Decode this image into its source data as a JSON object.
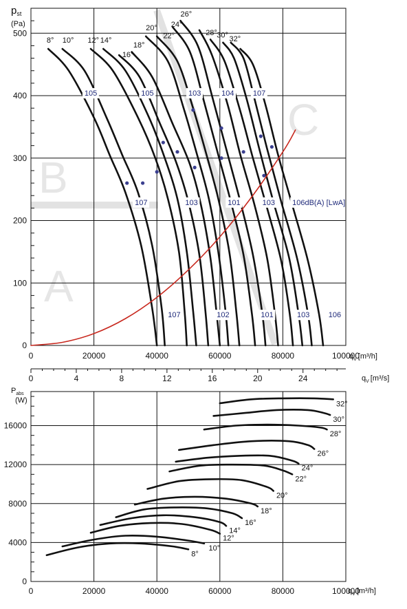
{
  "chart_data": [
    {
      "type": "line",
      "ylabel": "p",
      "ylabel_sub": "st",
      "yunit": "(Pa)",
      "xlabel": "q",
      "xlabel_sub": "V",
      "xunit": "[m³/h]",
      "x2unit": "[m³/s]",
      "xlim": [
        0,
        100000
      ],
      "ylim": [
        0,
        540
      ],
      "xticks": [
        "0",
        "20000",
        "40000",
        "60000",
        "80000",
        "100000"
      ],
      "x2ticks": [
        "0",
        "4",
        "8",
        "12",
        "16",
        "20",
        "24"
      ],
      "yticks": [
        "0",
        "100",
        "200",
        "300",
        "400",
        "500"
      ],
      "zones": [
        "A",
        "B",
        "C"
      ],
      "series": [
        {
          "name": "8°",
          "x": [
            5500,
            12000,
            20000,
            25000,
            30000,
            35000,
            38500,
            40000
          ],
          "y": [
            475,
            440,
            365,
            305,
            245,
            160,
            60,
            0
          ]
        },
        {
          "name": "10°",
          "x": [
            10000,
            17000,
            24000,
            29000,
            34000,
            38500,
            41500,
            42500
          ],
          "y": [
            475,
            440,
            365,
            305,
            245,
            160,
            60,
            0
          ]
        },
        {
          "name": "12°",
          "x": [
            19000,
            26000,
            34000,
            39500,
            43500,
            47000,
            48800,
            49500
          ],
          "y": [
            475,
            440,
            365,
            300,
            235,
            150,
            55,
            0
          ]
        },
        {
          "name": "14°",
          "x": [
            23000,
            30000,
            37500,
            42500,
            46500,
            49500,
            51500,
            52500
          ],
          "y": [
            475,
            440,
            365,
            300,
            235,
            150,
            55,
            0
          ]
        },
        {
          "name": "16°",
          "x": [
            28000,
            34500,
            41000,
            46000,
            50000,
            53500,
            55500,
            56300
          ],
          "y": [
            465,
            430,
            355,
            295,
            230,
            145,
            50,
            0
          ]
        },
        {
          "name": "18°",
          "x": [
            32000,
            38500,
            45000,
            50500,
            54000,
            57000,
            59000,
            60000
          ],
          "y": [
            470,
            430,
            355,
            290,
            225,
            140,
            50,
            0
          ]
        },
        {
          "name": "20°",
          "x": [
            36500,
            43500,
            48500,
            52500,
            56500,
            59500,
            61800,
            62700
          ],
          "y": [
            495,
            455,
            380,
            310,
            235,
            150,
            55,
            0
          ]
        },
        {
          "name": "22°",
          "x": [
            40000,
            46500,
            51500,
            55500,
            59500,
            63000,
            65200,
            66200
          ],
          "y": [
            495,
            455,
            380,
            310,
            235,
            150,
            55,
            0
          ]
        },
        {
          "name": "24°",
          "x": [
            45000,
            50500,
            55000,
            59500,
            63500,
            67500,
            70200,
            71200
          ],
          "y": [
            510,
            470,
            390,
            305,
            230,
            145,
            50,
            0
          ]
        },
        {
          "name": "26°",
          "x": [
            47500,
            53000,
            57500,
            62000,
            66500,
            70500,
            73500,
            74500
          ],
          "y": [
            520,
            480,
            400,
            315,
            230,
            145,
            50,
            0
          ]
        },
        {
          "name": "28°",
          "x": [
            53500,
            57500,
            62500,
            66500,
            71000,
            75000,
            77500,
            78500
          ],
          "y": [
            505,
            465,
            385,
            305,
            225,
            140,
            50,
            0
          ]
        },
        {
          "name": "30°",
          "x": [
            57000,
            61500,
            66500,
            70500,
            75000,
            79500,
            82200,
            83200
          ],
          "y": [
            490,
            455,
            375,
            300,
            220,
            135,
            50,
            0
          ]
        },
        {
          "name": "32°",
          "x": [
            61000,
            64500,
            68500,
            72500,
            77000,
            82000,
            85000,
            86200
          ],
          "y": [
            485,
            460,
            395,
            315,
            230,
            140,
            50,
            0
          ]
        },
        {
          "name": "32°b",
          "x": [
            63500,
            67500,
            71000,
            75000,
            79500,
            84500,
            88000,
            89200
          ],
          "y": [
            485,
            460,
            395,
            315,
            230,
            140,
            50,
            0
          ]
        },
        {
          "name": "32°c",
          "x": [
            66500,
            70500,
            74500,
            78500,
            83000,
            88000,
            91500,
            92800
          ],
          "y": [
            475,
            450,
            385,
            305,
            225,
            135,
            50,
            0
          ]
        },
        {
          "name": "system",
          "x": [
            0,
            10000,
            20000,
            30000,
            40000,
            50000,
            60000,
            70000,
            80000,
            84000
          ],
          "y": [
            0,
            5,
            19,
            43,
            77,
            121,
            174,
            237,
            310,
            345
          ]
        }
      ],
      "curve_labels": [
        {
          "text": "8°",
          "x": 5000,
          "y": 485
        },
        {
          "text": "10°",
          "x": 10000,
          "y": 485
        },
        {
          "text": "12°",
          "x": 18000,
          "y": 485
        },
        {
          "text": "14°",
          "x": 22000,
          "y": 485
        },
        {
          "text": "16°",
          "x": 29000,
          "y": 462
        },
        {
          "text": "18°",
          "x": 32500,
          "y": 477
        },
        {
          "text": "20°",
          "x": 36500,
          "y": 505
        },
        {
          "text": "22°",
          "x": 42000,
          "y": 492
        },
        {
          "text": "24°",
          "x": 44500,
          "y": 510
        },
        {
          "text": "26°",
          "x": 47500,
          "y": 527
        },
        {
          "text": "28°",
          "x": 55500,
          "y": 497
        },
        {
          "text": "30°",
          "x": 59000,
          "y": 493
        },
        {
          "text": "32°",
          "x": 63000,
          "y": 487
        }
      ],
      "db_labels": [
        {
          "text": "105",
          "x": 17000,
          "y": 400
        },
        {
          "text": "105",
          "x": 35000,
          "y": 400
        },
        {
          "text": "103",
          "x": 50000,
          "y": 400
        },
        {
          "text": "104",
          "x": 60500,
          "y": 400
        },
        {
          "text": "107",
          "x": 70500,
          "y": 400
        },
        {
          "text": "107",
          "x": 33000,
          "y": 225
        },
        {
          "text": "103",
          "x": 49000,
          "y": 225
        },
        {
          "text": "101",
          "x": 62500,
          "y": 225
        },
        {
          "text": "103",
          "x": 73500,
          "y": 225
        },
        {
          "text": "106dB(A) [LwA]",
          "x": 83000,
          "y": 225
        },
        {
          "text": "107",
          "x": 43500,
          "y": 45
        },
        {
          "text": "102",
          "x": 59000,
          "y": 45
        },
        {
          "text": "101",
          "x": 73000,
          "y": 45
        },
        {
          "text": "103",
          "x": 84500,
          "y": 45
        },
        {
          "text": "106",
          "x": 94500,
          "y": 45
        }
      ],
      "markers": [
        {
          "x": 30500,
          "y": 260
        },
        {
          "x": 35500,
          "y": 260
        },
        {
          "x": 40000,
          "y": 278
        },
        {
          "x": 42000,
          "y": 325
        },
        {
          "x": 46500,
          "y": 310
        },
        {
          "x": 52000,
          "y": 285
        },
        {
          "x": 51500,
          "y": 377
        },
        {
          "x": 60500,
          "y": 300
        },
        {
          "x": 60500,
          "y": 348
        },
        {
          "x": 67500,
          "y": 310
        },
        {
          "x": 73000,
          "y": 335
        },
        {
          "x": 74000,
          "y": 272
        },
        {
          "x": 76500,
          "y": 318
        }
      ]
    },
    {
      "type": "line",
      "ylabel": "P",
      "ylabel_sub": "abs",
      "yunit": "(W)",
      "xlabel": "q",
      "xlabel_sub": "V",
      "xunit": "[m³/h]",
      "xlim": [
        0,
        100000
      ],
      "ylim": [
        0,
        19500
      ],
      "xticks": [
        "0",
        "20000",
        "40000",
        "60000",
        "80000",
        "100000"
      ],
      "yticks": [
        "0",
        "4000",
        "8000",
        "12000",
        "16000"
      ],
      "series": [
        {
          "name": "8°",
          "x": [
            5000,
            15000,
            25000,
            35000,
            45000,
            50000
          ],
          "y": [
            2700,
            3500,
            3900,
            3900,
            3600,
            3300
          ]
        },
        {
          "name": "10°",
          "x": [
            10000,
            20000,
            30000,
            40000,
            50000,
            55000
          ],
          "y": [
            3600,
            4300,
            4700,
            4600,
            4200,
            3900
          ]
        },
        {
          "name": "12°",
          "x": [
            19000,
            28000,
            38000,
            48000,
            57000,
            60000
          ],
          "y": [
            5000,
            5700,
            6000,
            5900,
            5300,
            4900
          ]
        },
        {
          "name": "14°",
          "x": [
            22000,
            32000,
            42000,
            52000,
            60000,
            62000
          ],
          "y": [
            5800,
            6500,
            6800,
            6600,
            6100,
            5700
          ]
        },
        {
          "name": "16°",
          "x": [
            27000,
            36000,
            46000,
            56000,
            64000,
            67000
          ],
          "y": [
            6600,
            7400,
            7600,
            7500,
            7000,
            6500
          ]
        },
        {
          "name": "18°",
          "x": [
            33000,
            42000,
            52000,
            62000,
            70000,
            72000
          ],
          "y": [
            7900,
            8500,
            8700,
            8500,
            8000,
            7700
          ]
        },
        {
          "name": "20°",
          "x": [
            37000,
            47000,
            57000,
            67000,
            75000,
            77000
          ],
          "y": [
            9500,
            10300,
            10500,
            10400,
            9700,
            9300
          ]
        },
        {
          "name": "22°",
          "x": [
            44000,
            54000,
            64000,
            74000,
            80000,
            83000
          ],
          "y": [
            11300,
            11900,
            12000,
            11900,
            11400,
            11000
          ]
        },
        {
          "name": "24°",
          "x": [
            46000,
            56000,
            66000,
            76000,
            83000,
            85000
          ],
          "y": [
            12300,
            12700,
            12900,
            12900,
            12400,
            12100
          ]
        },
        {
          "name": "26°",
          "x": [
            47000,
            58000,
            70000,
            82000,
            88000,
            90000
          ],
          "y": [
            13500,
            14000,
            14400,
            14400,
            14000,
            13600
          ]
        },
        {
          "name": "28°",
          "x": [
            55000,
            65000,
            75000,
            85000,
            92000,
            94000
          ],
          "y": [
            15600,
            16000,
            16100,
            16000,
            15800,
            15600
          ]
        },
        {
          "name": "30°",
          "x": [
            58000,
            68000,
            78000,
            88000,
            93000,
            95000
          ],
          "y": [
            17000,
            17300,
            17600,
            17600,
            17300,
            17100
          ]
        },
        {
          "name": "32°",
          "x": [
            60000,
            70000,
            80000,
            90000,
            96000
          ],
          "y": [
            18300,
            18700,
            18800,
            18800,
            18700
          ]
        }
      ],
      "curve_labels": [
        {
          "text": "8°",
          "x": 50500,
          "y": 3300
        },
        {
          "text": "10°",
          "x": 56000,
          "y": 3900
        },
        {
          "text": "12°",
          "x": 60500,
          "y": 4900
        },
        {
          "text": "14°",
          "x": 62500,
          "y": 5700
        },
        {
          "text": "16°",
          "x": 67500,
          "y": 6500
        },
        {
          "text": "18°",
          "x": 72500,
          "y": 7700
        },
        {
          "text": "20°",
          "x": 77500,
          "y": 9300
        },
        {
          "text": "22°",
          "x": 83500,
          "y": 11000
        },
        {
          "text": "24°",
          "x": 85500,
          "y": 12100
        },
        {
          "text": "26°",
          "x": 90500,
          "y": 13600
        },
        {
          "text": "28°",
          "x": 94500,
          "y": 15600
        },
        {
          "text": "30°",
          "x": 95500,
          "y": 17100
        },
        {
          "text": "32°",
          "x": 96500,
          "y": 18700
        }
      ]
    }
  ]
}
